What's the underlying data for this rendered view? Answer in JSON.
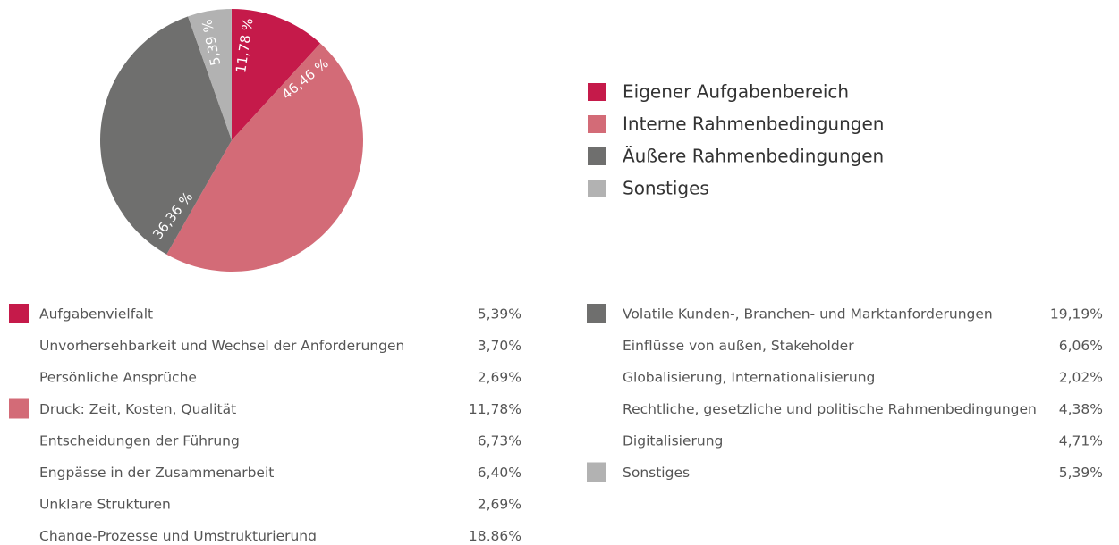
{
  "chart_data": {
    "type": "pie",
    "series": [
      {
        "name": "Eigener Aufgabenbereich",
        "color": "#c51a4a",
        "value": 11.78,
        "value_label": "11,78 %"
      },
      {
        "name": "Interne Rahmenbedingungen",
        "color": "#d36b77",
        "value": 46.46,
        "value_label": "46,46 %"
      },
      {
        "name": "Äußere Rahmenbedingungen",
        "color": "#6f6f6e",
        "value": 36.36,
        "value_label": "36,36 %"
      },
      {
        "name": "Sonstiges",
        "color": "#b2b2b2",
        "value": 5.39,
        "value_label": "5,39 %"
      }
    ]
  },
  "breakdown": {
    "left": [
      {
        "label": "Aufgabenvielfalt",
        "value": "5,39%",
        "color": "#c51a4a"
      },
      {
        "label": "Unvorhersehbarkeit und Wechsel der Anforderungen",
        "value": "3,70%"
      },
      {
        "label": "Persönliche Ansprüche",
        "value": "2,69%"
      },
      {
        "label": "Druck: Zeit, Kosten, Qualität",
        "value": "11,78%",
        "color": "#d36b77"
      },
      {
        "label": "Entscheidungen der Führung",
        "value": "6,73%"
      },
      {
        "label": "Engpässe in der Zusammenarbeit",
        "value": "6,40%"
      },
      {
        "label": "Unklare Strukturen",
        "value": "2,69%"
      },
      {
        "label": "Change-Prozesse und Umstrukturierung",
        "value": "18,86%"
      }
    ],
    "right": [
      {
        "label": "Volatile Kunden-, Branchen- und Marktanforderungen",
        "value": "19,19%",
        "color": "#6f6f6e"
      },
      {
        "label": "Einflüsse von außen, Stakeholder",
        "value": "6,06%"
      },
      {
        "label": "Globalisierung, Internationalisierung",
        "value": "2,02%"
      },
      {
        "label": "Rechtliche, gesetzliche und politische Rahmenbedingungen",
        "value": "4,38%"
      },
      {
        "label": "Digitalisierung",
        "value": "4,71%"
      },
      {
        "label": "Sonstiges",
        "value": "5,39%",
        "color": "#b2b2b2"
      }
    ]
  }
}
